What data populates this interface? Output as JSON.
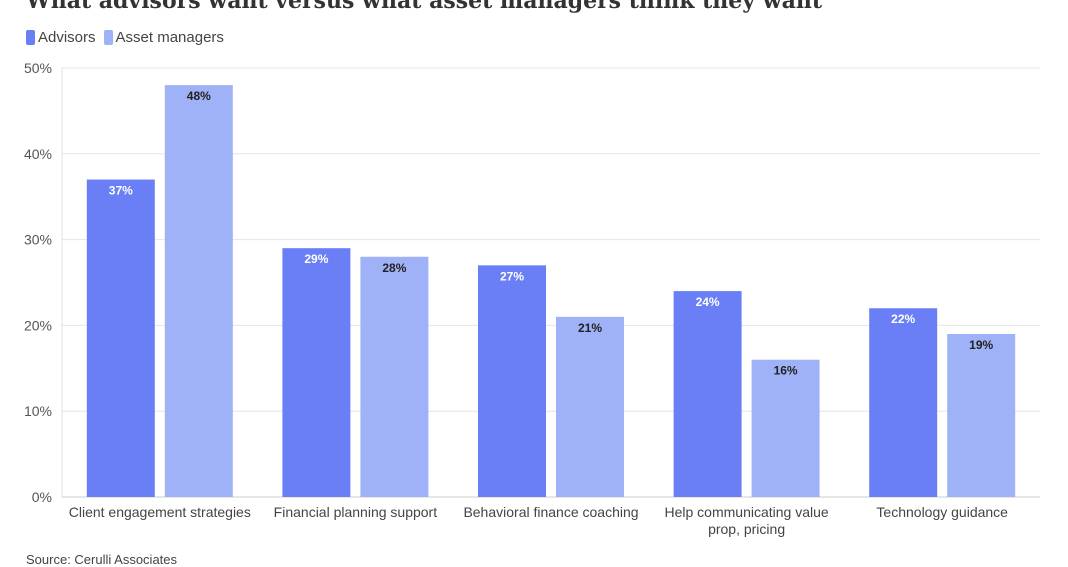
{
  "title": "What advisors want versus what asset managers think they want",
  "source": "Source: Cerulli Associates",
  "colors": {
    "advisors": "#6a7ff5",
    "asset_managers": "#9fb1f7",
    "grid": "#e6e6e6",
    "axis_text": "#555555"
  },
  "chart_data": {
    "type": "bar",
    "categories": [
      "Client engagement strategies",
      "Financial planning support",
      "Behavioral finance coaching",
      "Help communicating value prop, pricing",
      "Technology guidance"
    ],
    "category_lines": [
      [
        "Client engagement strategies"
      ],
      [
        "Financial planning support"
      ],
      [
        "Behavioral finance coaching"
      ],
      [
        "Help communicating value",
        "prop, pricing"
      ],
      [
        "Technology guidance"
      ]
    ],
    "series": [
      {
        "name": "Advisors",
        "values": [
          37,
          29,
          27,
          24,
          22
        ]
      },
      {
        "name": "Asset managers",
        "values": [
          48,
          28,
          21,
          16,
          19
        ]
      }
    ],
    "ylim": [
      0,
      50
    ],
    "yticks": [
      "0%",
      "10%",
      "20%",
      "30%",
      "40%",
      "50%"
    ],
    "legend": "top-left",
    "grid": true,
    "value_suffix": "%"
  }
}
